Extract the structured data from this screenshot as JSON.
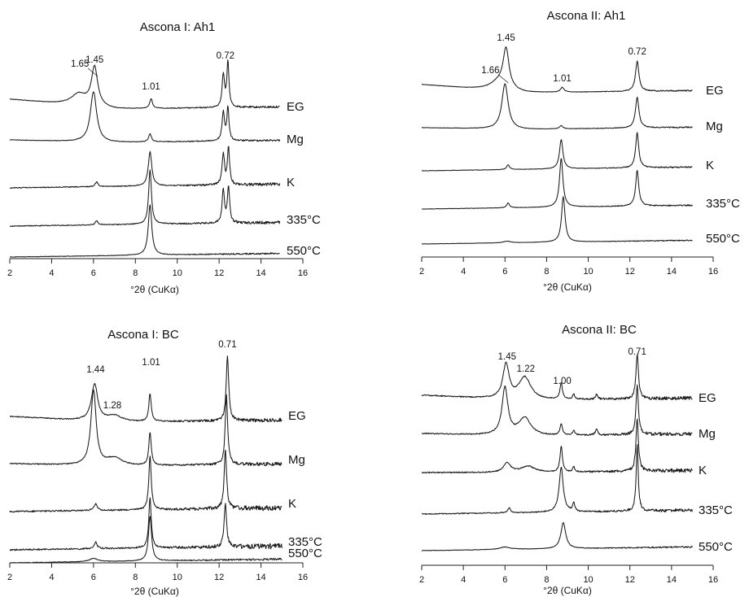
{
  "chart_data": [
    {
      "type": "line",
      "title": "Ascona I: Ah1",
      "xlabel": "°2θ (CuKα)",
      "xlim": [
        2,
        16
      ],
      "xticks": [
        2,
        4,
        6,
        8,
        10,
        12,
        14,
        16
      ],
      "series": [
        {
          "name": "EG",
          "x_end": 14.9
        },
        {
          "name": "Mg",
          "x_end": 14.9
        },
        {
          "name": "K",
          "x_end": 14.9
        },
        {
          "name": "335°C",
          "x_end": 14.9
        },
        {
          "name": "550°C",
          "x_end": 14.9
        }
      ],
      "peak_labels": [
        {
          "text": "1.65",
          "x": 5.35
        },
        {
          "text": "1.45",
          "x": 6.05
        },
        {
          "text": "1.01",
          "x": 8.75
        },
        {
          "text": "0.72",
          "x": 12.3
        }
      ]
    },
    {
      "type": "line",
      "title": "Ascona II: Ah1",
      "xlabel": "°2θ (CuKα)",
      "xlim": [
        2,
        16
      ],
      "xticks": [
        2,
        4,
        6,
        8,
        10,
        12,
        14,
        16
      ],
      "series": [
        {
          "name": "EG",
          "x_end": 15.0
        },
        {
          "name": "Mg",
          "x_end": 15.0
        },
        {
          "name": "K",
          "x_end": 15.0
        },
        {
          "name": "335°C",
          "x_end": 15.0
        },
        {
          "name": "550°C",
          "x_end": 15.0
        }
      ],
      "peak_labels": [
        {
          "text": "1.66",
          "x": 5.3
        },
        {
          "text": "1.45",
          "x": 6.05
        },
        {
          "text": "1.01",
          "x": 8.75
        },
        {
          "text": "0.72",
          "x": 12.35
        }
      ]
    },
    {
      "type": "line",
      "title": "Ascona I: BC",
      "xlabel": "°2θ (CuKα)",
      "xlim": [
        2,
        16
      ],
      "xticks": [
        2,
        4,
        6,
        8,
        10,
        12,
        14,
        16
      ],
      "series": [
        {
          "name": "EG",
          "x_end": 15.0
        },
        {
          "name": "Mg",
          "x_end": 15.0
        },
        {
          "name": "K",
          "x_end": 15.0
        },
        {
          "name": "335°C",
          "x_end": 15.0
        },
        {
          "name": "550°C",
          "x_end": 15.0
        }
      ],
      "peak_labels": [
        {
          "text": "1.44",
          "x": 6.1
        },
        {
          "text": "1.28",
          "x": 6.9
        },
        {
          "text": "1.01",
          "x": 8.75
        },
        {
          "text": "0.71",
          "x": 12.4
        }
      ]
    },
    {
      "type": "line",
      "title": "Ascona II: BC",
      "xlabel": "°2θ (CuKα)",
      "xlim": [
        2,
        16
      ],
      "xticks": [
        2,
        4,
        6,
        8,
        10,
        12,
        14,
        16
      ],
      "series": [
        {
          "name": "EG",
          "x_end": 15.0
        },
        {
          "name": "Mg",
          "x_end": 15.0
        },
        {
          "name": "K",
          "x_end": 15.0
        },
        {
          "name": "335°C",
          "x_end": 15.0
        },
        {
          "name": "550°C",
          "x_end": 15.0
        }
      ],
      "peak_labels": [
        {
          "text": "1.45",
          "x": 6.1
        },
        {
          "text": "1.22",
          "x": 7.0
        },
        {
          "text": "1.00",
          "x": 8.75
        },
        {
          "text": "0.71",
          "x": 12.35
        }
      ]
    }
  ]
}
